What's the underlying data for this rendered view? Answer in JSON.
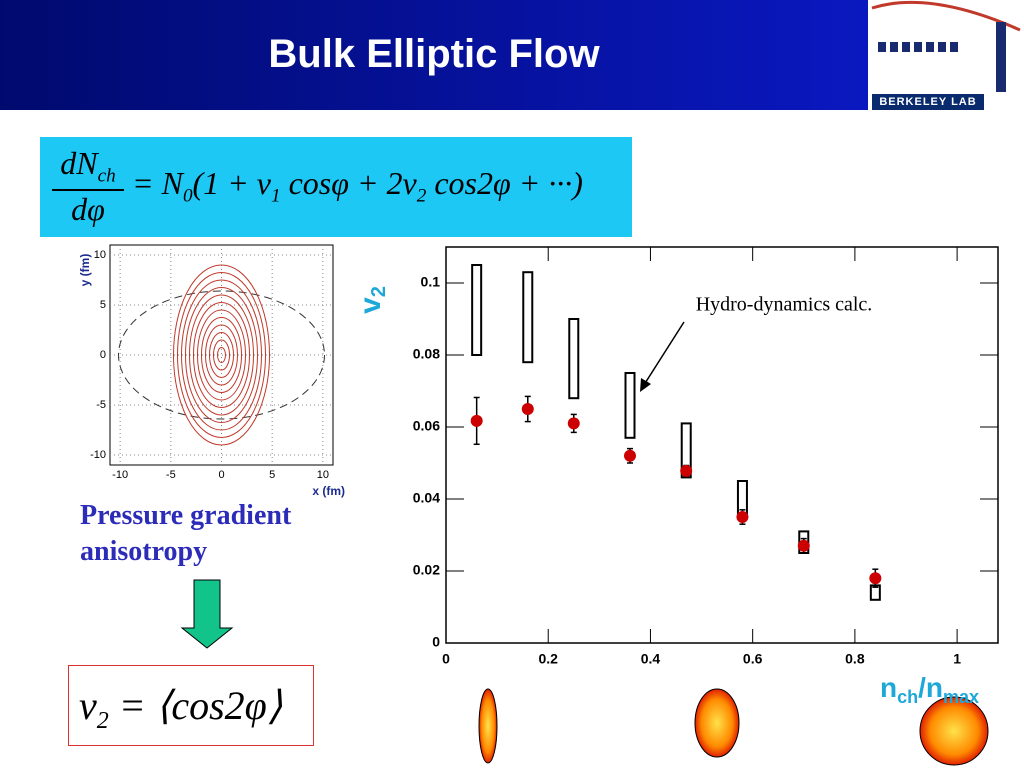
{
  "title": "Bulk Elliptic Flow",
  "logo_text": "BERKELEY LAB",
  "equation": {
    "numerator": {
      "text": "dN",
      "sub": "ch"
    },
    "denominator": "dφ",
    "rhs": [
      {
        "text": "= N",
        "sub": "0"
      },
      {
        "text": "(1 + v",
        "sub": "1"
      },
      {
        "text": " cosφ + 2v",
        "sub": "2"
      },
      {
        "text": " cos2φ + ···)"
      }
    ]
  },
  "caption": [
    "Pressure gradient",
    "anisotropy"
  ],
  "result": [
    {
      "text": "v",
      "sub": "2"
    },
    {
      "text": " = ⟨cos2φ⟩"
    }
  ],
  "chart_data": [
    {
      "type": "contour",
      "xlabel": "x (fm)",
      "ylabel": "y (fm)",
      "xlim": [
        -11,
        11
      ],
      "ylim": [
        -11,
        11
      ],
      "xticks": [
        -10,
        -5,
        0,
        5,
        10
      ],
      "yticks": [
        -10,
        -5,
        0,
        5,
        10
      ],
      "grid": true
    },
    {
      "type": "scatter",
      "xlabel": [
        {
          "text": "n",
          "sub": "ch"
        },
        {
          "text": "/n",
          "sub": "max"
        }
      ],
      "ylabel": {
        "text": "v",
        "sub": "2"
      },
      "xlim": [
        0,
        1.08
      ],
      "ylim": [
        0,
        0.11
      ],
      "xticks": [
        0,
        0.2,
        0.4,
        0.6,
        0.8,
        1
      ],
      "yticks": [
        0,
        0.02,
        0.04,
        0.06,
        0.08,
        0.1
      ],
      "points": {
        "color": "#cc0000",
        "x": [
          0.06,
          0.16,
          0.25,
          0.36,
          0.47,
          0.58,
          0.7,
          0.84
        ],
        "values": [
          0.0617,
          0.065,
          0.061,
          0.052,
          0.0478,
          0.035,
          0.027,
          0.018
        ],
        "errors": [
          0.0065,
          0.0035,
          0.0025,
          0.002,
          0.0015,
          0.002,
          0.002,
          0.0025
        ]
      },
      "hydro": {
        "color": "#000000",
        "x": [
          0.06,
          0.16,
          0.25,
          0.36,
          0.47,
          0.58,
          0.7,
          0.84
        ],
        "low": [
          0.08,
          0.078,
          0.068,
          0.057,
          0.046,
          0.036,
          0.025,
          0.012
        ],
        "high": [
          0.105,
          0.103,
          0.09,
          0.075,
          0.061,
          0.045,
          0.031,
          0.016
        ]
      },
      "annotation": "Hydro-dynamics calc."
    }
  ]
}
